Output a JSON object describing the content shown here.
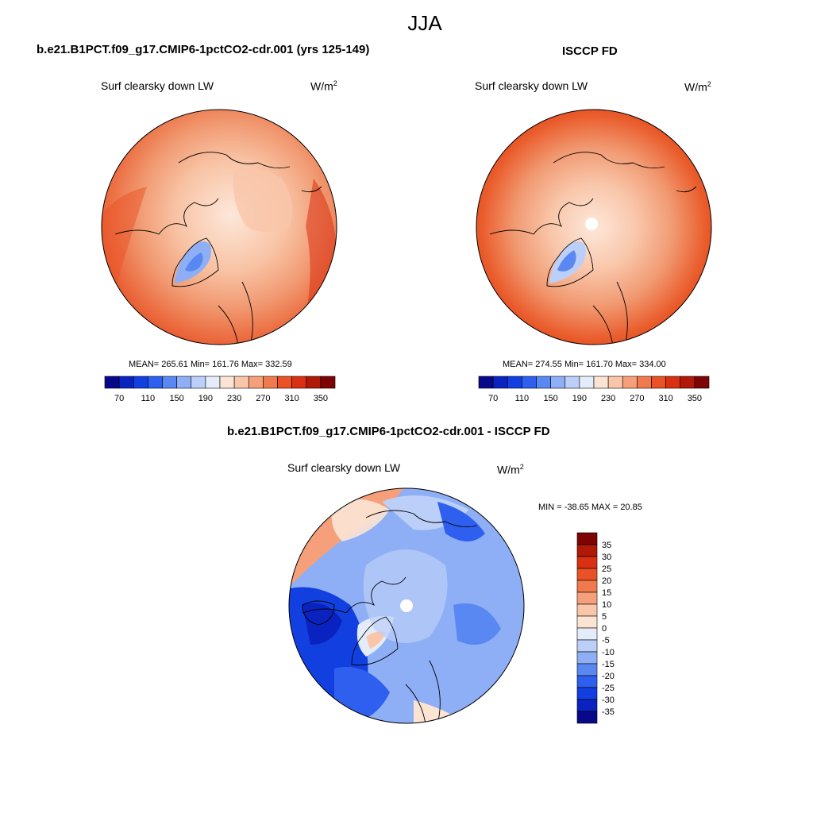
{
  "season": "JJA",
  "panels": [
    {
      "title": "b.e21.B1PCT.f09_g17.CMIP6-1pctCO2-cdr.001 (yrs 125-149)",
      "variable": "Surf clearsky down LW",
      "units_base": "W/m",
      "units_exp": "2",
      "stats": "MEAN= 265.61  Min= 161.76  Max= 332.59"
    },
    {
      "title": "ISCCP FD",
      "variable": "Surf clearsky down LW",
      "units_base": "W/m",
      "units_exp": "2",
      "stats": "MEAN= 274.55  Min= 161.70  Max= 334.00"
    },
    {
      "title": "b.e21.B1PCT.f09_g17.CMIP6-1pctCO2-cdr.001 - ISCCP FD",
      "variable": "Surf clearsky down LW",
      "units_base": "W/m",
      "units_exp": "2",
      "stats": "MIN = -38.65 MAX =  20.85"
    }
  ],
  "colorbar_abs": {
    "labels": [
      "70",
      "110",
      "150",
      "190",
      "230",
      "270",
      "310",
      "350"
    ],
    "colors": [
      "#08088a",
      "#0a23c0",
      "#1240e0",
      "#2f5fef",
      "#5a88f2",
      "#8eaff6",
      "#bccff8",
      "#e4ecfa",
      "#fce4d4",
      "#f9c6aa",
      "#f5a07a",
      "#f07a4e",
      "#ea5226",
      "#d83010",
      "#b01808",
      "#7e0404"
    ]
  },
  "colorbar_diff": {
    "labels": [
      "35",
      "30",
      "25",
      "20",
      "15",
      "10",
      "5",
      "0",
      "-5",
      "-10",
      "-15",
      "-20",
      "-25",
      "-30",
      "-35"
    ],
    "colors": [
      "#7e0404",
      "#b01808",
      "#d83010",
      "#ea5226",
      "#f07a4e",
      "#f5a07a",
      "#f9c6aa",
      "#fce4d4",
      "#e4ecfa",
      "#bccff8",
      "#8eaff6",
      "#5a88f2",
      "#2f5fef",
      "#1240e0",
      "#0a23c0",
      "#08088a"
    ]
  }
}
